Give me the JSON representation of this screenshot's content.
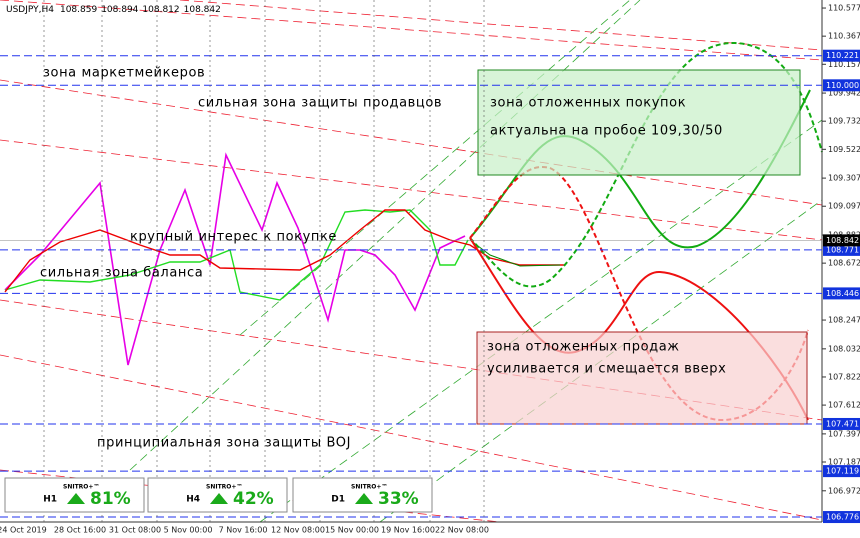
{
  "header": {
    "symbol": "USDJPY,H4",
    "prices": [
      108.859,
      108.894,
      108.812,
      108.842
    ]
  },
  "price_axis": {
    "ylim": [
      106.739,
      110.637
    ],
    "ticks": [
      110.577,
      110.367,
      110.157,
      109.942,
      109.732,
      109.522,
      109.307,
      109.097,
      108.882,
      108.672,
      108.247,
      108.032,
      107.822,
      107.612,
      107.397,
      107.187,
      106.972
    ],
    "levels": [
      110.221,
      {
        "value": 110,
        "label": "110.000"
      },
      108.771,
      108.446,
      107.471,
      107.119,
      106.776
    ],
    "current_price": 108.842
  },
  "time_axis": {
    "labels": [
      "24 Oct 2019",
      "28 Oct 16:00",
      "31 Oct 08:00",
      "5 Nov 00:00",
      "7 Nov 16:00",
      "12 Nov 08:00",
      "15 Nov 00:00",
      "19 Nov 16:00",
      "22 Nov 08:00"
    ]
  },
  "annotations": [
    "зона маркетмейкеров",
    "сильная зона защиты продавцов",
    "крупный интерес к покупке",
    "сильная зона баланса",
    "принципиальная зона защиты BOJ"
  ],
  "zones": [
    {
      "lines": [
        "зона отложенных покупок",
        "актуальна на пробое 109,30/50"
      ]
    },
    {
      "lines": [
        "зона отложенных продаж",
        "усиливается и смещается вверх"
      ]
    }
  ],
  "widgets": [
    {
      "brand": "SNITRO+™",
      "timeframe": "H1",
      "percent": "81%"
    },
    {
      "brand": "SNITRO+™",
      "timeframe": "H4",
      "percent": "42%"
    },
    {
      "brand": "SNITRO+™",
      "timeframe": "D1",
      "percent": "33%"
    }
  ]
}
